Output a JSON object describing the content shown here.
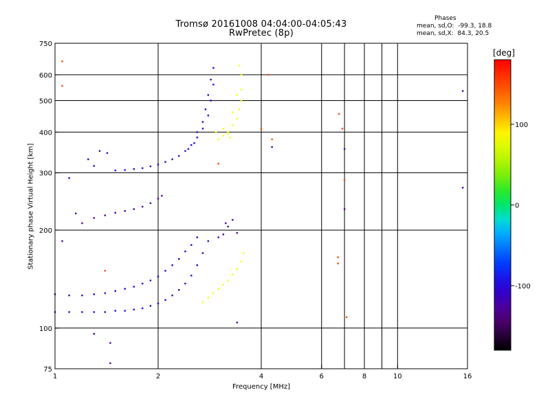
{
  "header": {
    "title": "Tromsø 20161008 04:04:00-04:05:43",
    "subtitle": "RwPretec (8p)",
    "stats_title": "Phases",
    "stats_o": "mean, sd,O:  -99.3, 18.8",
    "stats_x": "mean, sd,X:  84.3, 20.5"
  },
  "colorbar": {
    "label": "[deg]",
    "ticks": [
      {
        "value": 100,
        "label": "100"
      },
      {
        "value": 0,
        "label": "0"
      },
      {
        "value": -100,
        "label": "-100"
      }
    ],
    "range": [
      -180,
      180
    ]
  },
  "chart_data": {
    "type": "scatter",
    "title": "Tromsø 20161008 04:04:00-04:05:43",
    "subtitle": "RwPretec (8p)",
    "xlabel": "Frequency [MHz]",
    "ylabel": "Stationary phase Virtual Height [km]",
    "x_scale": "log",
    "y_scale": "log",
    "xlim": [
      1,
      16
    ],
    "ylim": [
      75,
      750
    ],
    "x_ticks": [
      1,
      2,
      4,
      6,
      8,
      10,
      16
    ],
    "y_ticks": [
      75,
      100,
      200,
      300,
      400,
      500,
      600,
      750
    ],
    "grid_x": [
      2,
      4,
      6,
      7,
      8,
      9,
      10,
      16
    ],
    "grid_y": [
      100,
      200,
      300,
      400,
      500,
      600
    ],
    "series": [
      {
        "name": "O",
        "phase_deg": -99,
        "points": [
          [
            1.0,
            112
          ],
          [
            1.1,
            112
          ],
          [
            1.2,
            112
          ],
          [
            1.3,
            112
          ],
          [
            1.4,
            112
          ],
          [
            1.5,
            113
          ],
          [
            1.6,
            113
          ],
          [
            1.7,
            114
          ],
          [
            1.8,
            115
          ],
          [
            1.9,
            117
          ],
          [
            2.0,
            119
          ],
          [
            2.1,
            122
          ],
          [
            2.2,
            126
          ],
          [
            2.3,
            131
          ],
          [
            2.4,
            137
          ],
          [
            2.5,
            145
          ],
          [
            2.6,
            156
          ],
          [
            2.7,
            170
          ],
          [
            2.8,
            185
          ],
          [
            1.0,
            127
          ],
          [
            1.1,
            126
          ],
          [
            1.2,
            126
          ],
          [
            1.3,
            127
          ],
          [
            1.4,
            128
          ],
          [
            1.5,
            130
          ],
          [
            1.6,
            132
          ],
          [
            1.7,
            134
          ],
          [
            1.8,
            137
          ],
          [
            1.9,
            140
          ],
          [
            2.0,
            144
          ],
          [
            2.1,
            150
          ],
          [
            2.2,
            156
          ],
          [
            2.3,
            163
          ],
          [
            2.4,
            172
          ],
          [
            2.5,
            180
          ],
          [
            2.6,
            190
          ],
          [
            1.5,
            305
          ],
          [
            1.6,
            306
          ],
          [
            1.7,
            308
          ],
          [
            1.8,
            310
          ],
          [
            1.9,
            314
          ],
          [
            2.0,
            318
          ],
          [
            2.1,
            324
          ],
          [
            2.2,
            330
          ],
          [
            2.3,
            338
          ],
          [
            2.4,
            350
          ],
          [
            2.5,
            365
          ],
          [
            2.6,
            385
          ],
          [
            2.7,
            410
          ],
          [
            2.8,
            450
          ],
          [
            2.85,
            500
          ],
          [
            2.9,
            560
          ],
          [
            2.9,
            630
          ],
          [
            2.45,
            355
          ],
          [
            2.55,
            370
          ],
          [
            2.6,
            400
          ],
          [
            2.7,
            430
          ],
          [
            2.75,
            470
          ],
          [
            2.8,
            520
          ],
          [
            2.85,
            580
          ],
          [
            1.3,
            315
          ],
          [
            1.25,
            330
          ],
          [
            1.42,
            345
          ],
          [
            1.1,
            289
          ],
          [
            1.35,
            350
          ]
        ]
      },
      {
        "name": "O-low-layer",
        "phase_deg": -125,
        "points": [
          [
            1.2,
            210
          ],
          [
            1.3,
            218
          ],
          [
            1.4,
            222
          ],
          [
            1.5,
            226
          ],
          [
            1.6,
            229
          ],
          [
            1.7,
            232
          ],
          [
            1.8,
            236
          ],
          [
            1.9,
            242
          ],
          [
            2.0,
            250
          ],
          [
            2.05,
            255
          ],
          [
            3.0,
            190
          ],
          [
            3.1,
            194
          ],
          [
            3.2,
            205
          ],
          [
            3.3,
            215
          ],
          [
            3.4,
            196
          ],
          [
            3.15,
            210
          ],
          [
            1.15,
            225
          ],
          [
            1.05,
            185
          ],
          [
            3.4,
            104
          ],
          [
            1.45,
            90
          ],
          [
            1.45,
            78
          ],
          [
            1.3,
            96
          ],
          [
            15.5,
            270
          ],
          [
            15.5,
            535
          ],
          [
            7.0,
            355
          ],
          [
            7.0,
            232
          ],
          [
            4.3,
            360
          ]
        ]
      },
      {
        "name": "X",
        "phase_deg": 84,
        "points": [
          [
            2.7,
            120
          ],
          [
            2.8,
            124
          ],
          [
            2.9,
            128
          ],
          [
            3.0,
            132
          ],
          [
            3.1,
            136
          ],
          [
            3.2,
            140
          ],
          [
            3.3,
            146
          ],
          [
            3.4,
            152
          ],
          [
            3.5,
            160
          ],
          [
            3.55,
            170
          ],
          [
            3.0,
            380
          ],
          [
            3.1,
            390
          ],
          [
            3.2,
            400
          ],
          [
            3.3,
            420
          ],
          [
            3.4,
            440
          ],
          [
            3.45,
            470
          ],
          [
            3.5,
            500
          ],
          [
            3.5,
            540
          ],
          [
            3.5,
            600
          ],
          [
            3.45,
            640
          ],
          [
            3.1,
            410
          ],
          [
            3.2,
            395
          ],
          [
            3.3,
            460
          ],
          [
            3.4,
            520
          ],
          [
            3.25,
            385
          ],
          [
            2.95,
            400
          ]
        ]
      },
      {
        "name": "scatter-other",
        "phase_deg": 150,
        "points": [
          [
            1.05,
            660
          ],
          [
            1.05,
            555
          ],
          [
            4.0,
            410
          ],
          [
            4.3,
            380
          ],
          [
            6.75,
            455
          ],
          [
            6.9,
            410
          ],
          [
            7.0,
            285
          ],
          [
            7.1,
            108
          ],
          [
            6.7,
            165
          ],
          [
            6.7,
            158
          ],
          [
            1.4,
            150
          ],
          [
            3.0,
            320
          ],
          [
            4.2,
            600
          ]
        ]
      }
    ]
  }
}
